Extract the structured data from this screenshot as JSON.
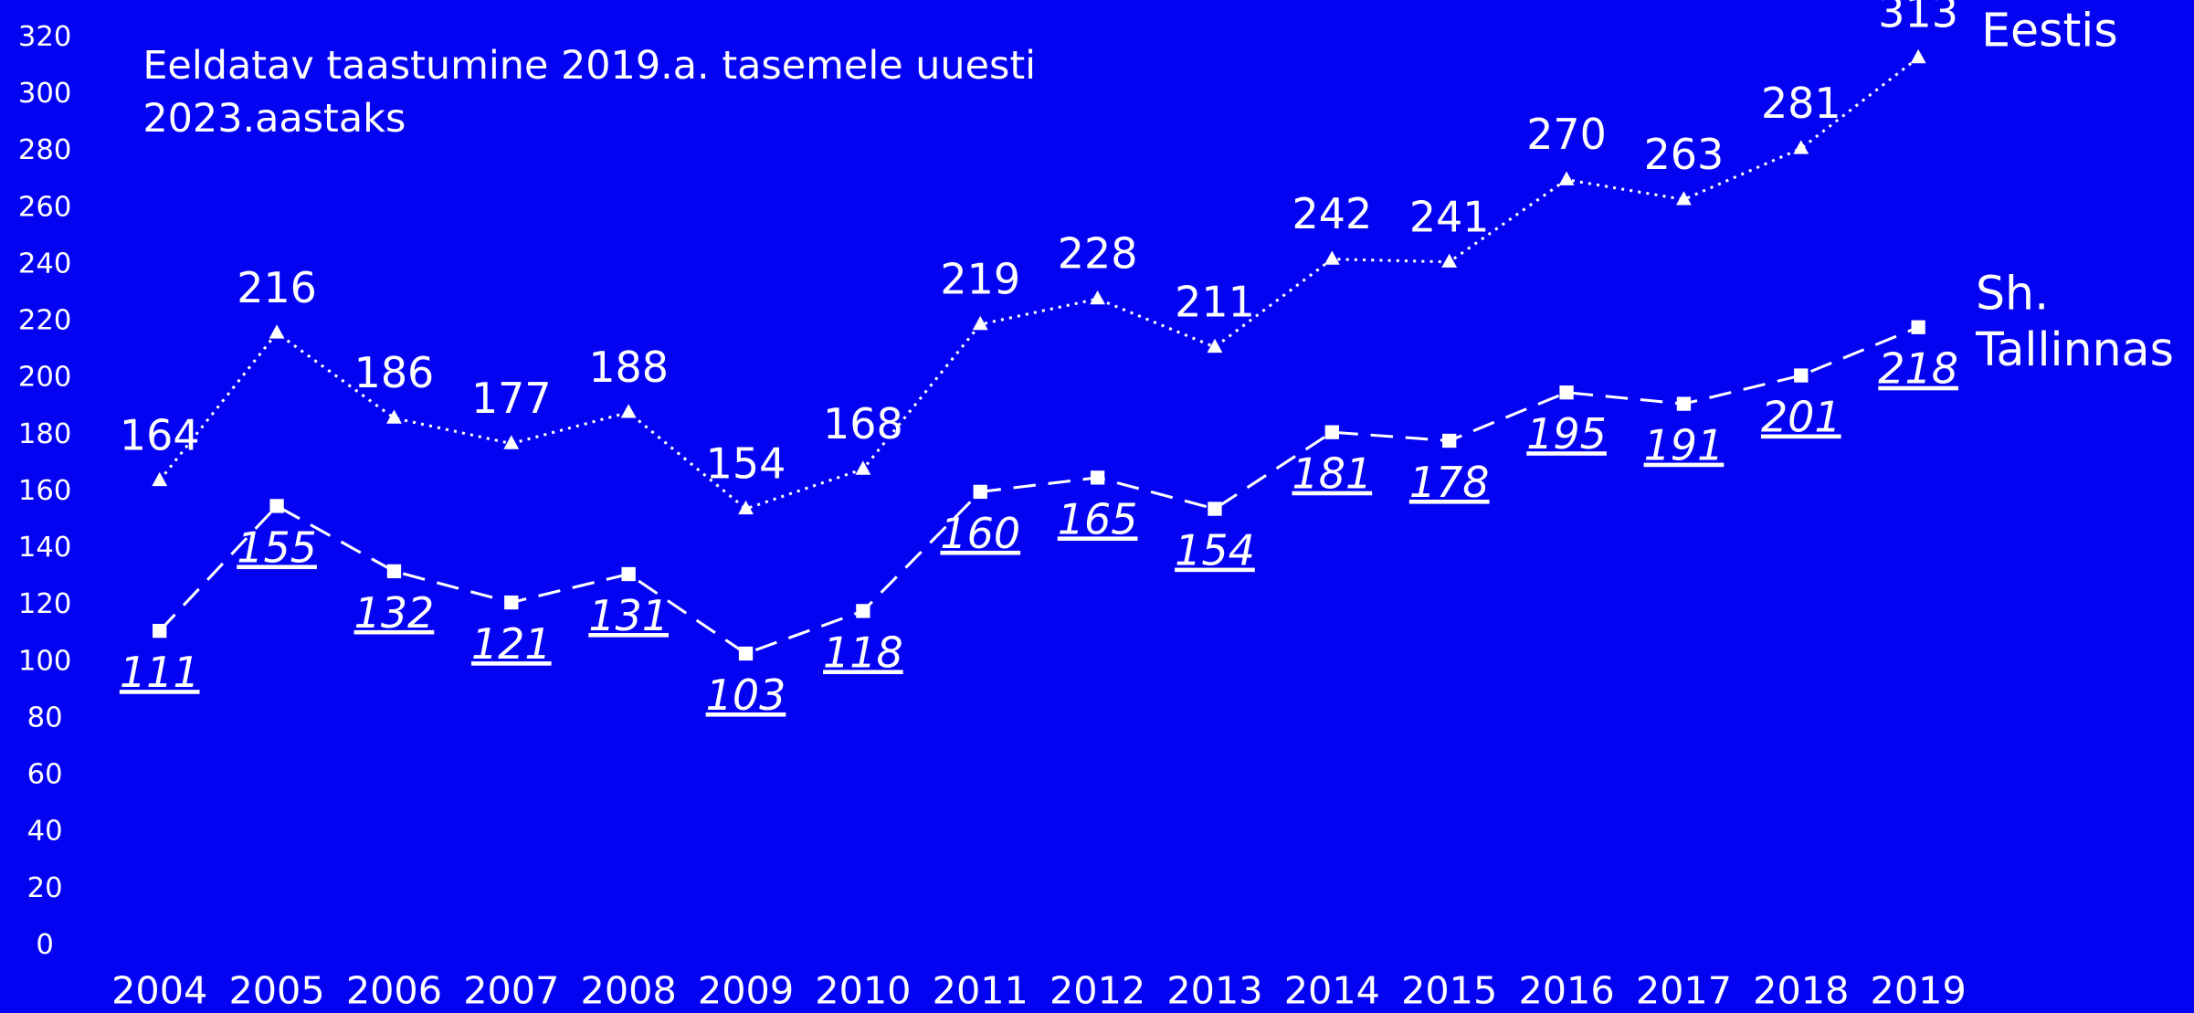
{
  "chart_data": {
    "type": "line",
    "title": "Eeldatav taastumine 2019.a. tasemele uuesti 2023.aastaks",
    "categories": [
      "2004",
      "2005",
      "2006",
      "2007",
      "2008",
      "2009",
      "2010",
      "2011",
      "2012",
      "2013",
      "2014",
      "2015",
      "2016",
      "2017",
      "2018",
      "2019"
    ],
    "series": [
      {
        "name": "Eestis",
        "color": "#ffffff",
        "line_style": "dotted",
        "marker": "triangle",
        "values": [
          164,
          216,
          186,
          177,
          188,
          154,
          168,
          219,
          228,
          211,
          242,
          241,
          270,
          263,
          281,
          313
        ]
      },
      {
        "name": "Sh. Tallinnas",
        "color": "#ffffff",
        "line_style": "dashed",
        "marker": "square",
        "values": [
          111,
          155,
          132,
          121,
          131,
          103,
          118,
          160,
          165,
          154,
          181,
          178,
          195,
          191,
          201,
          218
        ]
      }
    ],
    "ylim": [
      0,
      320
    ],
    "yticks": [
      0,
      20,
      40,
      60,
      80,
      100,
      120,
      140,
      160,
      180,
      200,
      220,
      240,
      260,
      280,
      300,
      320
    ],
    "grid": false
  }
}
